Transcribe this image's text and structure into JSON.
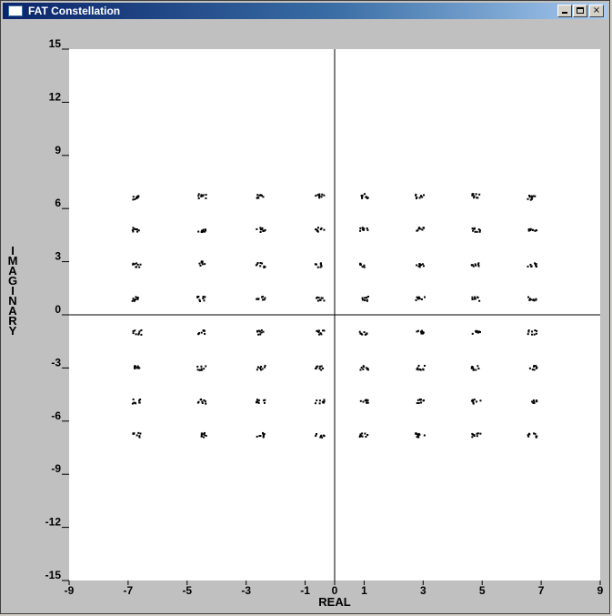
{
  "window": {
    "title": "FAT Constellation",
    "buttons": {
      "minimize": "minimize",
      "maximize": "maximize",
      "close": "×"
    },
    "title_icon": "window-app-icon"
  },
  "chart_data": {
    "type": "scatter",
    "title": "",
    "xlabel": "REAL",
    "ylabel": "IMAGINARY",
    "xlim": [
      -9,
      9
    ],
    "ylim": [
      -15,
      15
    ],
    "x_ticks": [
      -9,
      -7,
      -5,
      -3,
      -1,
      0,
      1,
      3,
      5,
      7,
      9
    ],
    "y_ticks": [
      15,
      12,
      9,
      6,
      3,
      0,
      -3,
      -6,
      -9,
      -12,
      -15
    ],
    "grid": false,
    "legend": "none",
    "marker_color": "#000000",
    "background_color": "#ffffff",
    "series": [
      {
        "x": [
          -6.7,
          -4.5,
          -2.5,
          -0.5,
          1.0,
          2.9,
          4.8,
          6.7,
          -6.7,
          -4.5,
          -2.5,
          -0.5,
          1.0,
          2.9,
          4.8,
          6.7,
          -6.7,
          -4.5,
          -2.5,
          -0.5,
          1.0,
          2.9,
          4.8,
          6.7,
          -6.7,
          -4.5,
          -2.5,
          -0.5,
          1.0,
          2.9,
          4.8,
          6.7,
          -6.7,
          -4.5,
          -2.5,
          -0.5,
          1.0,
          2.9,
          4.8,
          6.7,
          -6.7,
          -4.5,
          -2.5,
          -0.5,
          1.0,
          2.9,
          4.8,
          6.7,
          -6.7,
          -4.5,
          -2.5,
          -0.5,
          1.0,
          2.9,
          4.8,
          6.7,
          -6.7,
          -4.5,
          -2.5,
          -0.5,
          1.0,
          2.9,
          4.8,
          6.7
        ],
        "y": [
          6.6,
          6.7,
          6.7,
          6.7,
          6.7,
          6.7,
          6.7,
          6.6,
          4.8,
          4.8,
          4.8,
          4.8,
          4.8,
          4.8,
          4.8,
          4.8,
          2.8,
          2.9,
          2.8,
          2.8,
          2.8,
          2.8,
          2.8,
          2.8,
          0.9,
          0.9,
          0.9,
          0.9,
          0.9,
          0.9,
          0.9,
          0.9,
          -1.0,
          -1.0,
          -1.0,
          -1.0,
          -1.0,
          -1.0,
          -1.0,
          -1.0,
          -3.0,
          -3.0,
          -3.0,
          -3.0,
          -3.0,
          -3.0,
          -3.0,
          -3.0,
          -4.9,
          -4.9,
          -4.9,
          -4.9,
          -4.9,
          -4.9,
          -4.9,
          -4.9,
          -6.8,
          -6.8,
          -6.8,
          -6.8,
          -6.8,
          -6.8,
          -6.8,
          -6.8
        ]
      }
    ]
  }
}
